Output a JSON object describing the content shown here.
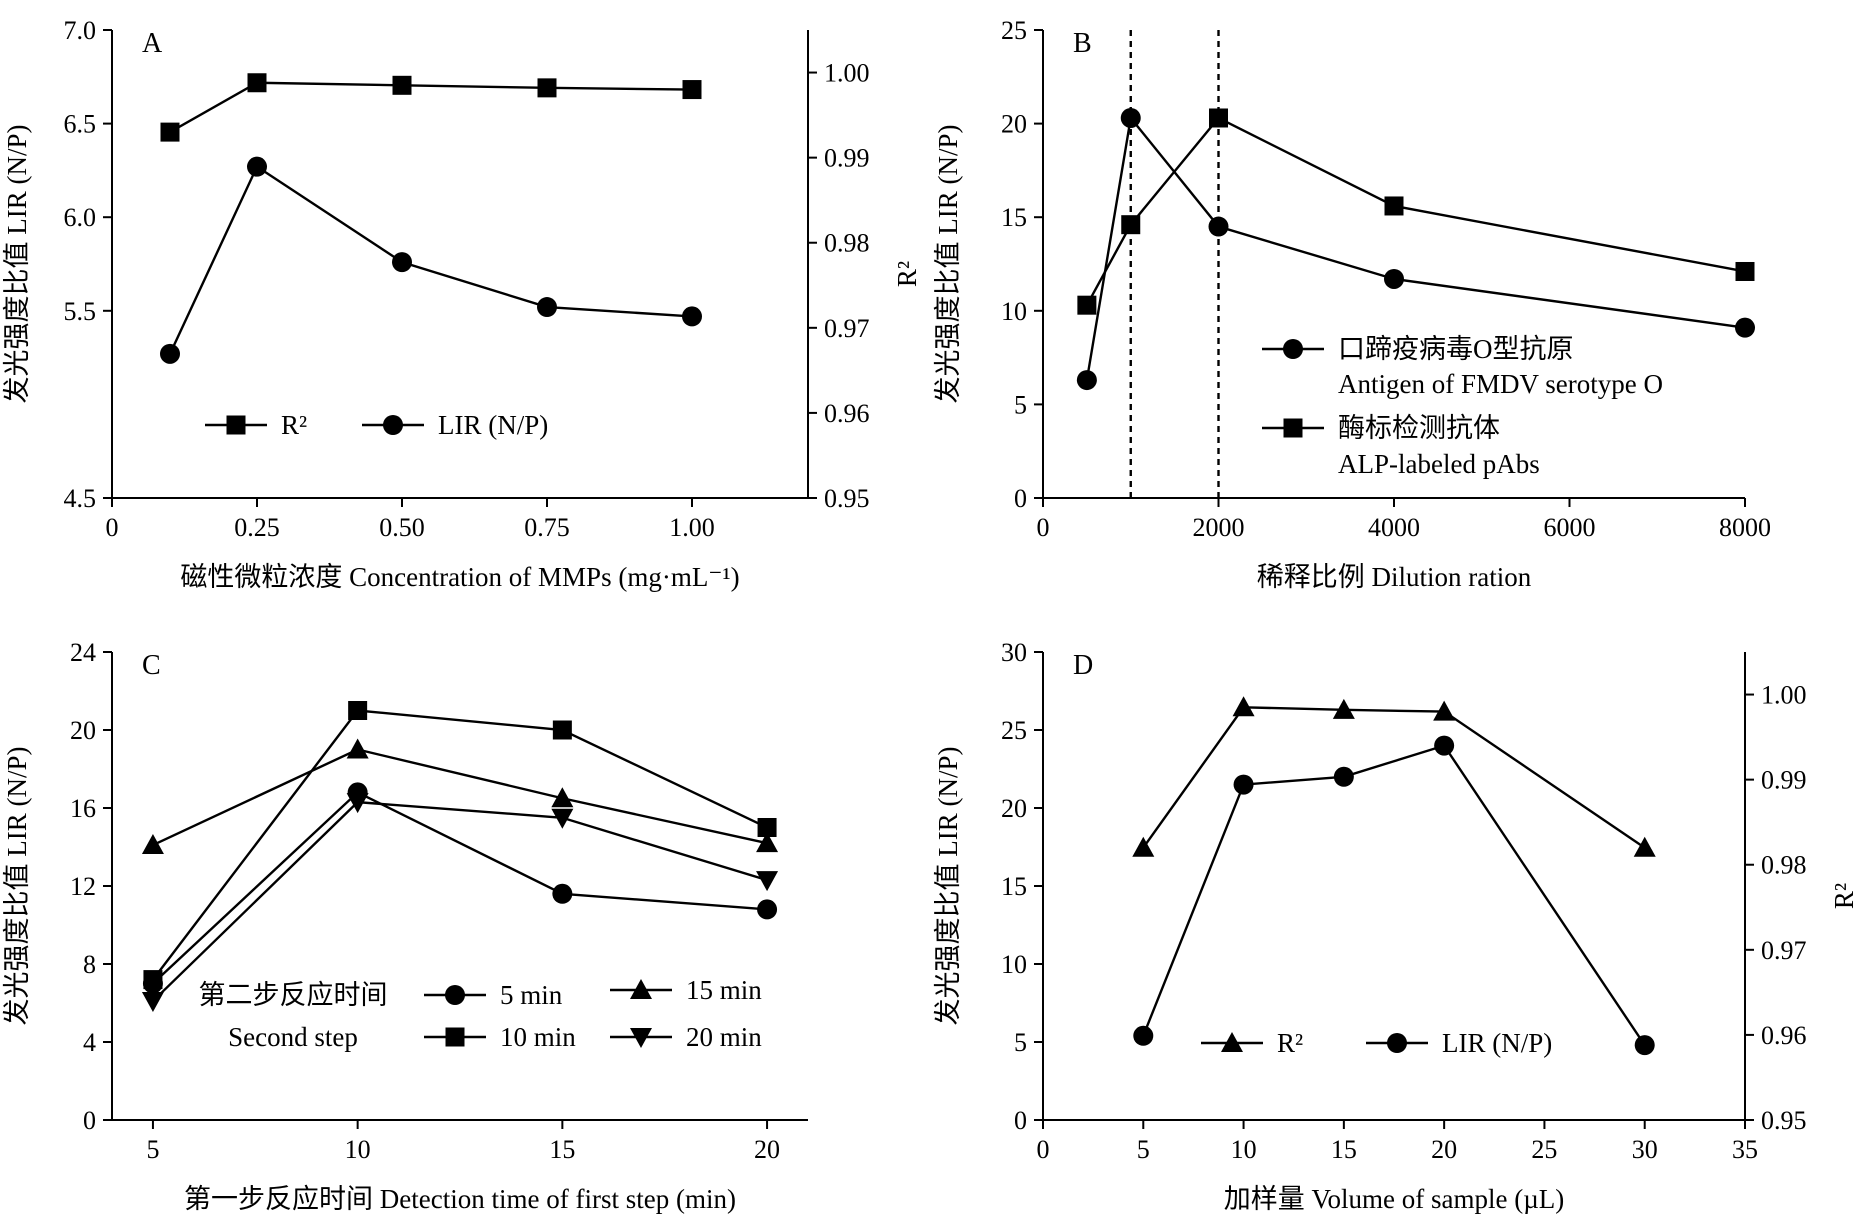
{
  "chart_data": [
    {
      "panel": "A",
      "type": "line",
      "xlabel": "磁性微粒浓度 Concentration of MMPs (mg·mL⁻¹)",
      "ylabel": "发光强度比值 LIR (N/P)",
      "y2label": "R²",
      "xlim": [
        0,
        1.2
      ],
      "ylim": [
        4.5,
        7.0
      ],
      "y2lim": [
        0.95,
        1.005
      ],
      "x_ticks": [
        "0",
        "0.25",
        "0.50",
        "0.75",
        "1.00"
      ],
      "x_tick_values": [
        0,
        0.25,
        0.5,
        0.75,
        1.0
      ],
      "y_ticks": [
        "4.5",
        "5.5",
        "6.0",
        "6.5",
        "7.0"
      ],
      "y_tick_values": [
        4.5,
        5.5,
        6.0,
        6.5,
        7.0
      ],
      "y2_ticks": [
        "0.95",
        "0.96",
        "0.97",
        "0.98",
        "0.99",
        "1.00"
      ],
      "y2_tick_values": [
        0.95,
        0.96,
        0.97,
        0.98,
        0.99,
        1.0
      ],
      "legend_position": "bottom-center",
      "series": [
        {
          "name": "R²",
          "marker": "square",
          "axis": "right",
          "x": [
            0.1,
            0.25,
            0.5,
            0.75,
            1.0
          ],
          "values": [
            0.993,
            0.9988,
            0.9985,
            0.9982,
            0.998
          ]
        },
        {
          "name": "LIR (N/P)",
          "marker": "circle",
          "axis": "left",
          "x": [
            0.1,
            0.25,
            0.5,
            0.75,
            1.0
          ],
          "values": [
            5.27,
            6.27,
            5.76,
            5.52,
            5.47
          ]
        }
      ]
    },
    {
      "panel": "B",
      "type": "line",
      "xlabel": "稀释比例 Dilution ration",
      "ylabel": "发光强度比值 LIR (N/P)",
      "xlim": [
        0,
        8000
      ],
      "ylim": [
        0,
        25
      ],
      "x_ticks": [
        "0",
        "2000",
        "4000",
        "6000",
        "8000"
      ],
      "x_tick_values": [
        0,
        2000,
        4000,
        6000,
        8000
      ],
      "y_ticks": [
        "0",
        "5",
        "10",
        "15",
        "20",
        "25"
      ],
      "y_tick_values": [
        0,
        5,
        10,
        15,
        20,
        25
      ],
      "reference_lines_x": [
        1000,
        2000
      ],
      "legend_position": "right",
      "series": [
        {
          "name": "口蹄疫病毒O型抗原",
          "name_en": "Antigen of FMDV serotype O",
          "marker": "circle",
          "x": [
            500,
            1000,
            2000,
            4000,
            8000
          ],
          "values": [
            6.3,
            20.3,
            14.5,
            11.7,
            9.1
          ]
        },
        {
          "name": "酶标检测抗体",
          "name_en": "ALP-labeled pAbs",
          "marker": "square",
          "x": [
            500,
            1000,
            2000,
            4000,
            8000
          ],
          "values": [
            10.3,
            14.6,
            20.3,
            15.6,
            12.1
          ]
        }
      ]
    },
    {
      "panel": "C",
      "type": "line",
      "xlabel": "第一步反应时间 Detection time of first step (min)",
      "ylabel": "发光强度比值 LIR (N/P)",
      "xlim": [
        4,
        21
      ],
      "ylim": [
        0,
        24
      ],
      "x_ticks": [
        "5",
        "10",
        "15",
        "20"
      ],
      "x_tick_values": [
        5,
        10,
        15,
        20
      ],
      "y_ticks": [
        "0",
        "4",
        "8",
        "12",
        "16",
        "20",
        "24"
      ],
      "y_tick_values": [
        0,
        4,
        8,
        12,
        16,
        20,
        24
      ],
      "legend_title": "第二步反应时间",
      "legend_title_en": "Second step",
      "legend_position": "bottom-center",
      "series": [
        {
          "name": "5 min",
          "marker": "circle",
          "x": [
            5,
            10,
            15,
            20
          ],
          "values": [
            7.0,
            16.8,
            11.6,
            10.8
          ]
        },
        {
          "name": "10 min",
          "marker": "square",
          "x": [
            5,
            10,
            15,
            20
          ],
          "values": [
            7.2,
            21.0,
            20.0,
            15.0
          ]
        },
        {
          "name": "15 min",
          "marker": "triangle-up",
          "x": [
            5,
            10,
            15,
            20
          ],
          "values": [
            14.1,
            19.0,
            16.5,
            14.2
          ]
        },
        {
          "name": "20 min",
          "marker": "triangle-down",
          "x": [
            5,
            10,
            15,
            20
          ],
          "values": [
            6.1,
            16.3,
            15.5,
            12.3
          ]
        }
      ]
    },
    {
      "panel": "D",
      "type": "line",
      "xlabel": "加样量 Volume of sample (µL)",
      "ylabel": "发光强度比值 LIR (N/P)",
      "y2label": "R²",
      "xlim": [
        0,
        35
      ],
      "ylim": [
        0,
        30
      ],
      "y2lim": [
        0.95,
        1.005
      ],
      "x_ticks": [
        "0",
        "5",
        "10",
        "15",
        "20",
        "25",
        "30",
        "35"
      ],
      "x_tick_values": [
        0,
        5,
        10,
        15,
        20,
        25,
        30,
        35
      ],
      "y_ticks": [
        "0",
        "5",
        "10",
        "15",
        "20",
        "25",
        "30"
      ],
      "y_tick_values": [
        0,
        5,
        10,
        15,
        20,
        25,
        30
      ],
      "y2_ticks": [
        "0.95",
        "0.96",
        "0.97",
        "0.98",
        "0.99",
        "1.00"
      ],
      "y2_tick_values": [
        0.95,
        0.96,
        0.97,
        0.98,
        0.99,
        1.0
      ],
      "legend_position": "bottom-center",
      "series": [
        {
          "name": "R²",
          "marker": "triangle-up",
          "axis": "right",
          "x": [
            5,
            10,
            15,
            20,
            30
          ],
          "values": [
            0.982,
            0.9985,
            0.9982,
            0.998,
            0.982
          ]
        },
        {
          "name": "LIR (N/P)",
          "marker": "circle",
          "axis": "left",
          "x": [
            5,
            10,
            20,
            15,
            30
          ],
          "values": [
            5.4,
            21.5,
            24.0,
            22.0,
            4.8
          ]
        }
      ]
    }
  ]
}
